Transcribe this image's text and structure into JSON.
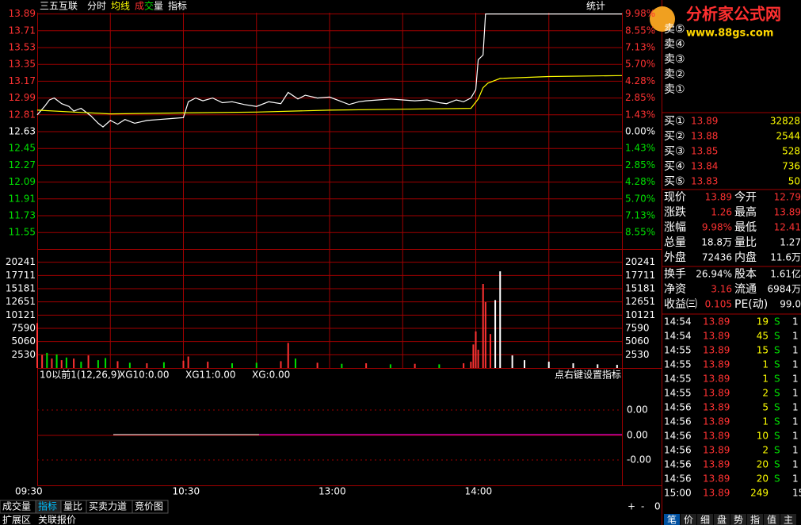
{
  "header": {
    "stock": "三五互联",
    "items": [
      {
        "text": "分时",
        "color": "#ffffff"
      },
      {
        "text": "均线",
        "color": "#ffff00"
      },
      {
        "text": "成",
        "color": "#ff3232"
      },
      {
        "text": "交",
        "color": "#00e000"
      },
      {
        "text": "量",
        "color": "#ffffff"
      },
      {
        "text": "指标",
        "color": "#ffffff"
      }
    ],
    "stat": "统计"
  },
  "logo": {
    "name": "分析家公式网",
    "url": "www.88gs.com"
  },
  "price_axis": {
    "ticks": [
      13.89,
      13.71,
      13.53,
      13.35,
      13.17,
      12.99,
      12.81,
      12.63,
      12.45,
      12.27,
      12.09,
      11.91,
      11.73,
      11.55
    ],
    "pct_labels": [
      "9.98%",
      "8.55%",
      "7.13%",
      "5.70%",
      "4.28%",
      "2.85%",
      "1.43%",
      "0.00%",
      "1.43%",
      "2.85%",
      "4.28%",
      "5.70%",
      "7.13%",
      "8.55%"
    ],
    "prev_close": 12.63
  },
  "volume_axis": {
    "ticks": [
      20241,
      17711,
      15181,
      12651,
      10121,
      7590,
      5060,
      2530
    ],
    "ylim": [
      0,
      22771
    ]
  },
  "time_axis": {
    "labels": [
      {
        "minute": 0,
        "text": "09:30"
      },
      {
        "minute": 60,
        "text": "10:30"
      },
      {
        "minute": 120,
        "text": "13:00"
      },
      {
        "minute": 180,
        "text": "14:00"
      }
    ],
    "xlim": [
      0,
      240
    ]
  },
  "price_series": {
    "minutes": [
      0,
      3,
      5,
      7,
      10,
      13,
      15,
      18,
      22,
      25,
      27,
      30,
      33,
      36,
      40,
      45,
      50,
      55,
      60,
      62,
      65,
      68,
      72,
      76,
      80,
      85,
      90,
      95,
      100,
      103,
      107,
      110,
      115,
      120,
      124,
      128,
      132,
      135,
      140,
      145,
      150,
      155,
      160,
      165,
      168,
      172,
      175,
      178,
      180,
      181,
      183,
      184,
      200,
      220,
      240
    ],
    "price": [
      12.81,
      12.9,
      12.97,
      12.99,
      12.93,
      12.9,
      12.85,
      12.88,
      12.8,
      12.72,
      12.68,
      12.75,
      12.71,
      12.76,
      12.72,
      12.75,
      12.76,
      12.77,
      12.78,
      12.95,
      12.99,
      12.96,
      12.99,
      12.94,
      12.95,
      12.92,
      12.9,
      12.95,
      12.93,
      13.05,
      12.98,
      13.02,
      12.99,
      13.0,
      12.96,
      12.92,
      12.95,
      12.96,
      12.97,
      12.98,
      12.97,
      12.96,
      12.97,
      12.94,
      12.93,
      12.97,
      12.95,
      12.99,
      13.08,
      13.4,
      13.45,
      13.89,
      13.89,
      13.89,
      13.89
    ],
    "avg_minutes": [
      0,
      15,
      30,
      60,
      90,
      120,
      150,
      178,
      181,
      183,
      185,
      190,
      210,
      240
    ],
    "avg": [
      12.86,
      12.84,
      12.82,
      12.83,
      12.84,
      12.86,
      12.87,
      12.88,
      12.98,
      13.1,
      13.15,
      13.2,
      13.22,
      13.23
    ]
  },
  "volume_series": {
    "minutes": [
      0,
      2,
      4,
      6,
      8,
      10,
      12,
      15,
      18,
      21,
      25,
      28,
      33,
      38,
      45,
      52,
      60,
      62,
      70,
      80,
      90,
      100,
      103,
      106,
      115,
      125,
      135,
      145,
      155,
      165,
      175,
      178,
      179,
      180,
      181,
      183,
      184,
      186,
      188,
      190,
      195,
      200,
      210,
      220,
      230,
      238
    ],
    "values": [
      8600,
      2500,
      2900,
      1800,
      2600,
      1500,
      2000,
      1800,
      1200,
      2400,
      1500,
      1900,
      1300,
      1000,
      900,
      1100,
      1400,
      2200,
      1200,
      900,
      1000,
      1300,
      4800,
      1800,
      1000,
      800,
      900,
      700,
      800,
      700,
      900,
      1200,
      4500,
      7000,
      3500,
      16100,
      12600,
      6500,
      13000,
      18500,
      2400,
      1500,
      1200,
      900,
      700,
      600
    ],
    "colors": [
      "#ff3232",
      "#ff3232",
      "#00e000",
      "#ff3232",
      "#00e000",
      "#ff3232",
      "#00e000",
      "#ff3232",
      "#00e000",
      "#ff3232",
      "#00e000",
      "#00e000",
      "#ff3232",
      "#00e000",
      "#ff3232",
      "#00e000",
      "#ff3232",
      "#ff3232",
      "#ff3232",
      "#00e000",
      "#00e000",
      "#ff3232",
      "#ff3232",
      "#00e000",
      "#ff3232",
      "#00e000",
      "#ff3232",
      "#00e000",
      "#ff3232",
      "#00e000",
      "#ff3232",
      "#ff3232",
      "#ff3232",
      "#ff3232",
      "#ff3232",
      "#ff3232",
      "#ff3232",
      "#ff3232",
      "#ffffff",
      "#ffffff",
      "#ffffff",
      "#ffffff",
      "#ffffff",
      "#ffffff",
      "#ffffff",
      "#ffffff"
    ]
  },
  "indicator": {
    "title": "10以前1(12,26,9)",
    "values": [
      "XG10:0.00",
      "XG11:0.00",
      "XG:0.00"
    ],
    "hint": "点右键设置指标",
    "levels": [
      "0.00",
      "0.00",
      "-0.00"
    ]
  },
  "order_book": {
    "sell": [
      "卖⑤",
      "卖④",
      "卖③",
      "卖②",
      "卖①"
    ],
    "buy": [
      [
        "买①",
        "13.89",
        "32828"
      ],
      [
        "买②",
        "13.88",
        "2544"
      ],
      [
        "买③",
        "13.85",
        "528"
      ],
      [
        "买④",
        "13.84",
        "736"
      ],
      [
        "买⑤",
        "13.83",
        "50"
      ]
    ]
  },
  "quote": {
    "rows": [
      [
        "现价",
        "13.89",
        "今开",
        "12.79"
      ],
      [
        "涨跌",
        "1.26",
        "最高",
        "13.89"
      ],
      [
        "涨幅",
        "9.98%",
        "最低",
        "12.41"
      ],
      [
        "总量",
        "18.8万",
        "量比",
        "1.27"
      ],
      [
        "外盘",
        "72436",
        "内盘",
        "11.6万"
      ]
    ],
    "rows2": [
      [
        "换手",
        "26.94%",
        "股本",
        "1.61亿"
      ],
      [
        "净资",
        "3.16",
        "流通",
        "6984万"
      ],
      [
        "收益㈢",
        "0.105",
        "PE(动)",
        "99.0"
      ]
    ]
  },
  "trades": [
    [
      "14:54",
      "13.89",
      "19",
      "S",
      "1"
    ],
    [
      "14:54",
      "13.89",
      "45",
      "S",
      "1"
    ],
    [
      "14:55",
      "13.89",
      "15",
      "S",
      "1"
    ],
    [
      "14:55",
      "13.89",
      "1",
      "S",
      "1"
    ],
    [
      "14:55",
      "13.89",
      "1",
      "S",
      "1"
    ],
    [
      "14:55",
      "13.89",
      "2",
      "S",
      "1"
    ],
    [
      "14:56",
      "13.89",
      "5",
      "S",
      "1"
    ],
    [
      "14:56",
      "13.89",
      "1",
      "S",
      "1"
    ],
    [
      "14:56",
      "13.89",
      "10",
      "S",
      "1"
    ],
    [
      "14:56",
      "13.89",
      "2",
      "S",
      "1"
    ],
    [
      "14:56",
      "13.89",
      "20",
      "S",
      "1"
    ],
    [
      "14:56",
      "13.89",
      "20",
      "S",
      "1"
    ],
    [
      "15:00",
      "13.89",
      "249",
      "",
      "15"
    ]
  ],
  "tabs": [
    "成交量",
    "指标",
    "量比",
    "买卖力道",
    "竞价图"
  ],
  "tabs2": [
    "扩展区",
    "关联报价"
  ],
  "zoom": [
    "+",
    "-",
    "0"
  ],
  "side_tabs": [
    "笔",
    "价",
    "细",
    "盘",
    "势",
    "指",
    "值",
    "主"
  ]
}
